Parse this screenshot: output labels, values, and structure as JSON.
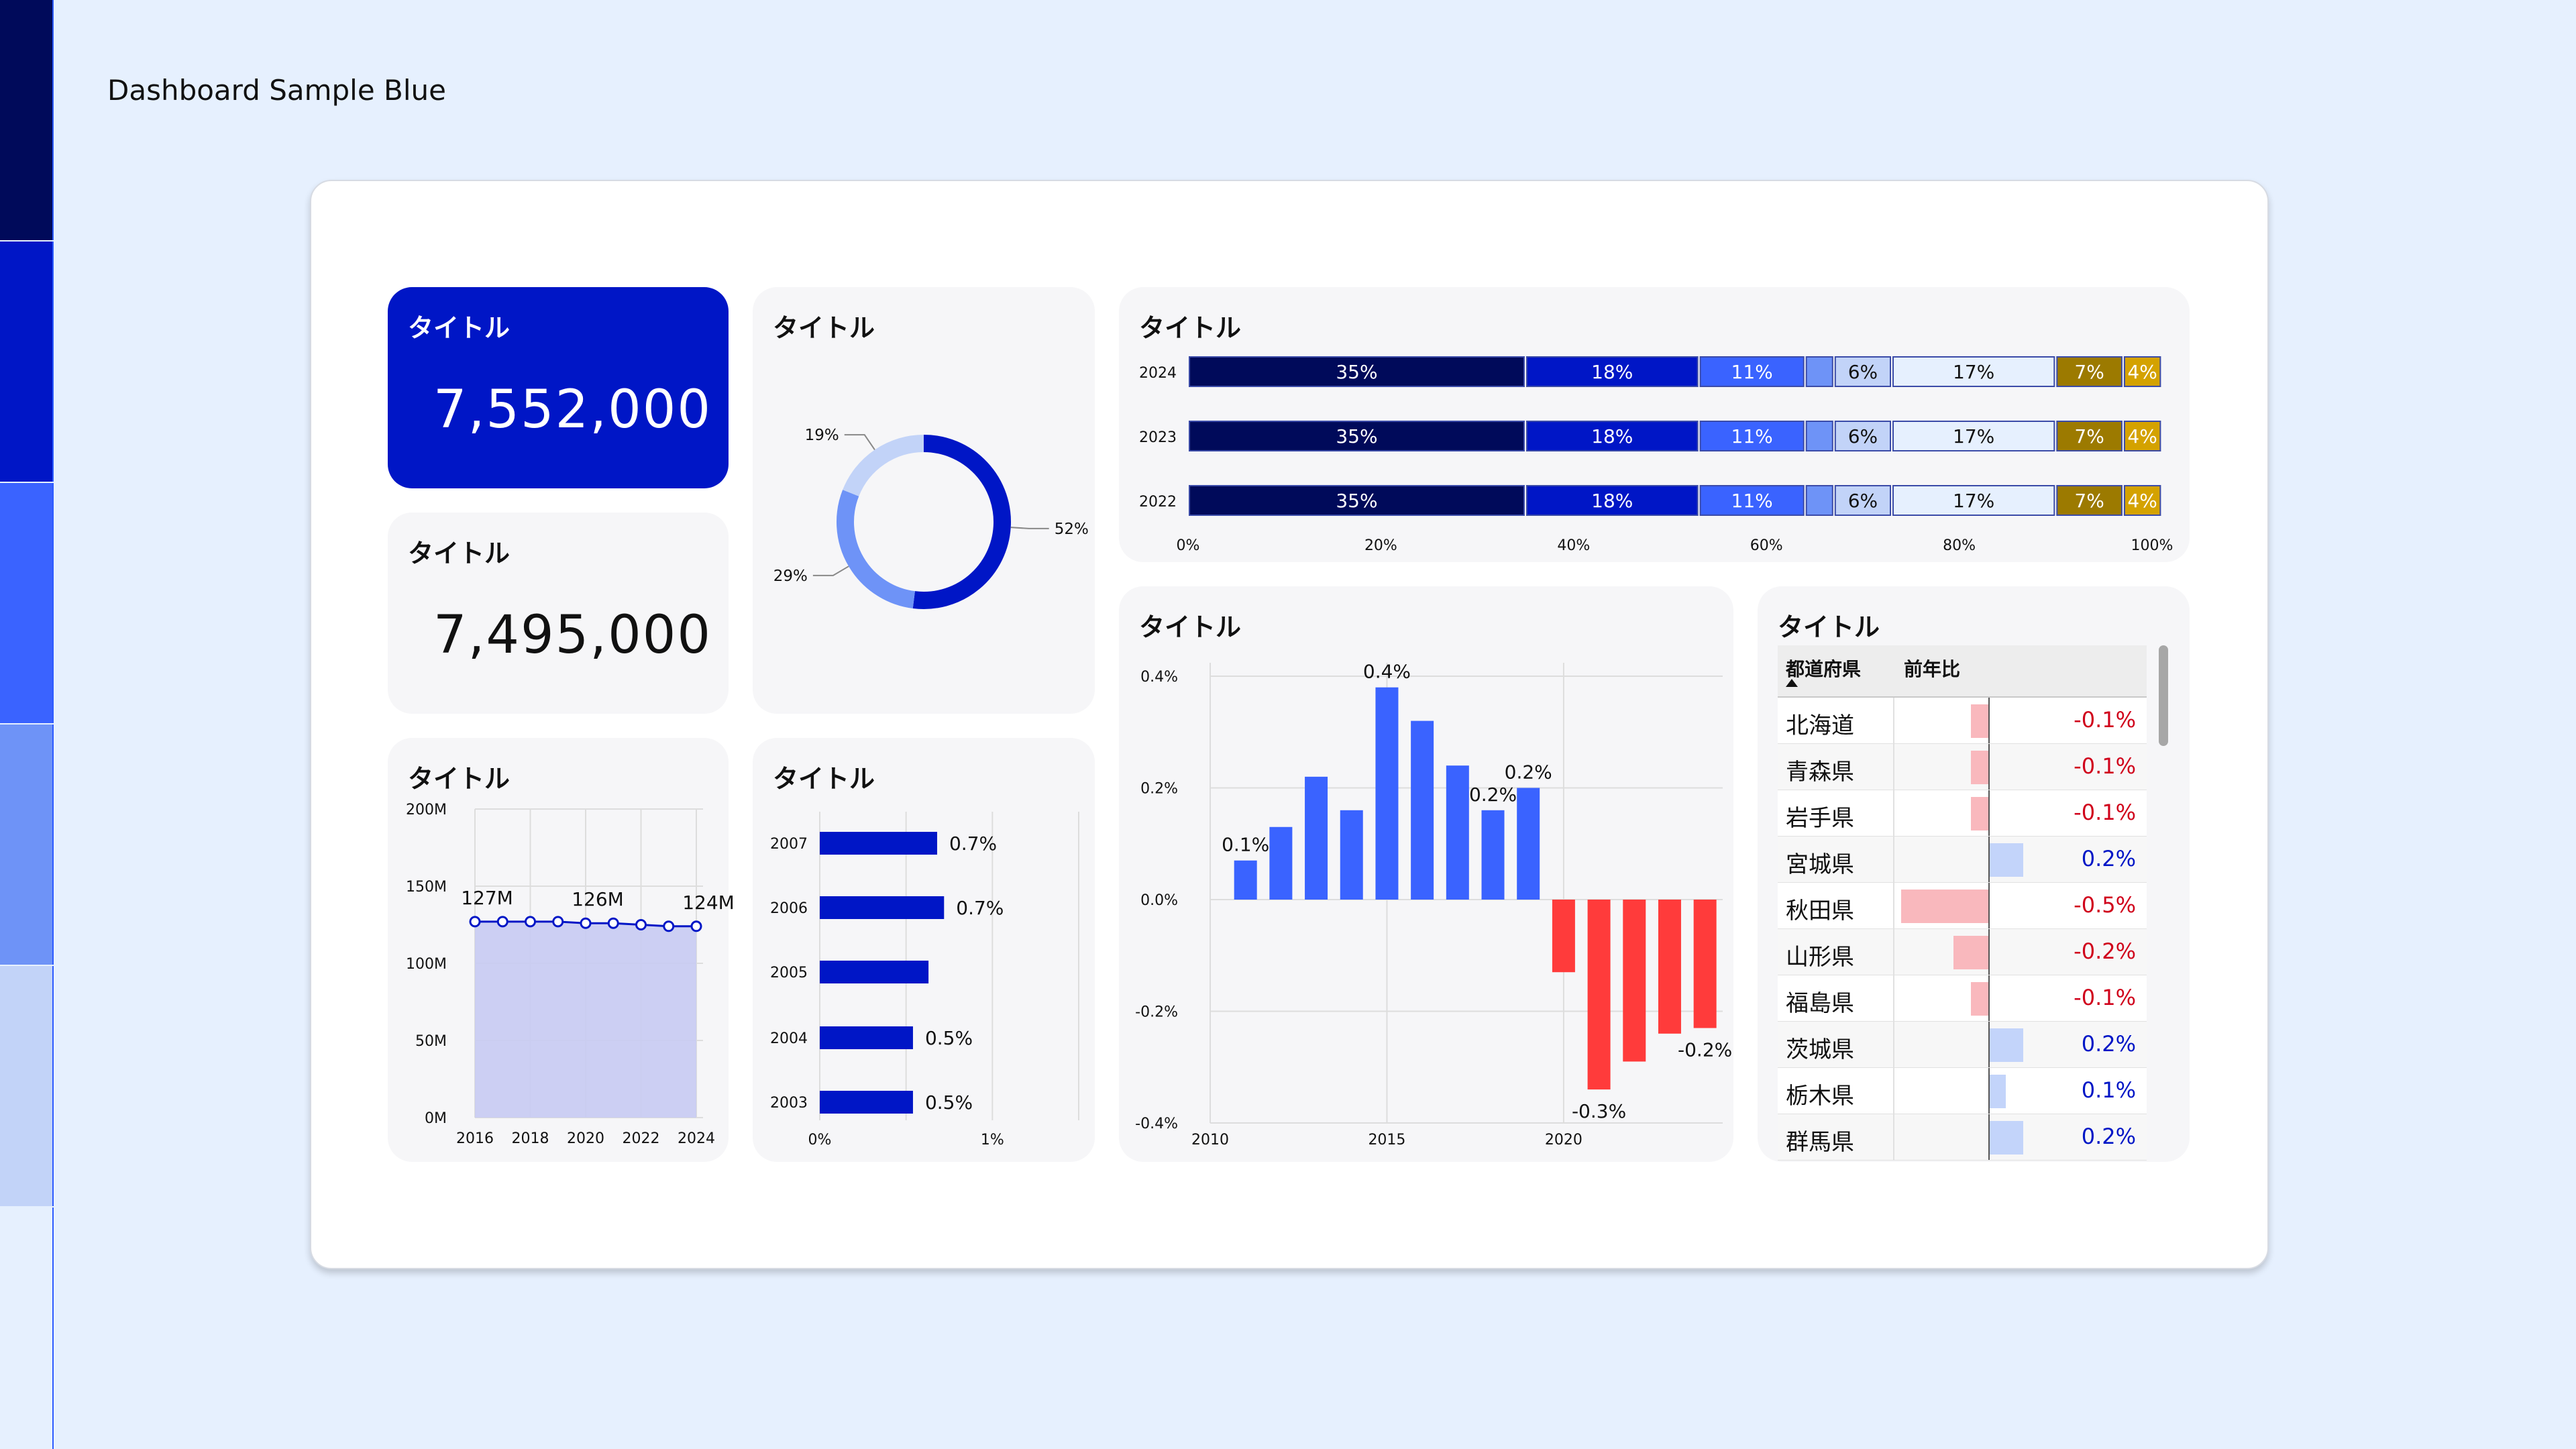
{
  "page": {
    "title": "Dashboard Sample Blue"
  },
  "palette": [
    "#000A5A",
    "#0016C6",
    "#3A63FF",
    "#6E93F7",
    "#C2D3F8",
    "#E6F0FE"
  ],
  "kpi1": {
    "title": "タイトル",
    "value": "7,552,000"
  },
  "kpi2": {
    "title": "タイトル",
    "value": "7,495,000"
  },
  "donut": {
    "title": "タイトル"
  },
  "stacked": {
    "title": "タイトル"
  },
  "line": {
    "title": "タイトル"
  },
  "hbar": {
    "title": "タイトル"
  },
  "column": {
    "title": "タイトル"
  },
  "table": {
    "title": "タイトル",
    "col_pref": "都道府県",
    "col_yoy": "前年比",
    "rows": [
      {
        "name": "北海道",
        "value": -0.1,
        "label": "-0.1%"
      },
      {
        "name": "青森県",
        "value": -0.1,
        "label": "-0.1%"
      },
      {
        "name": "岩手県",
        "value": -0.1,
        "label": "-0.1%"
      },
      {
        "name": "宮城県",
        "value": 0.2,
        "label": "0.2%"
      },
      {
        "name": "秋田県",
        "value": -0.5,
        "label": "-0.5%"
      },
      {
        "name": "山形県",
        "value": -0.2,
        "label": "-0.2%"
      },
      {
        "name": "福島県",
        "value": -0.1,
        "label": "-0.1%"
      },
      {
        "name": "茨城県",
        "value": 0.2,
        "label": "0.2%"
      },
      {
        "name": "栃木県",
        "value": 0.1,
        "label": "0.1%"
      },
      {
        "name": "群馬県",
        "value": 0.2,
        "label": "0.2%"
      }
    ]
  },
  "chart_data": [
    {
      "type": "pie",
      "subtype": "donut",
      "slices": [
        {
          "label": "52%",
          "value": 52,
          "color": "#0016C6"
        },
        {
          "label": "29%",
          "value": 29,
          "color": "#6E93F7"
        },
        {
          "label": "19%",
          "value": 19,
          "color": "#C2D3F8"
        }
      ]
    },
    {
      "type": "bar",
      "orientation": "horizontal",
      "stacked": "100%",
      "categories": [
        "2024",
        "2023",
        "2022"
      ],
      "xlim": [
        0,
        100
      ],
      "x_ticks": [
        "0%",
        "20%",
        "40%",
        "60%",
        "80%",
        "100%"
      ],
      "series": [
        {
          "values": [
            35,
            35,
            35
          ],
          "labels": [
            "35%",
            "35%",
            "35%"
          ],
          "color": "#000A5A",
          "text_color": "#FFFFFF"
        },
        {
          "values": [
            18,
            18,
            18
          ],
          "labels": [
            "18%",
            "18%",
            "18%"
          ],
          "color": "#0016C6",
          "text_color": "#FFFFFF"
        },
        {
          "values": [
            11,
            11,
            11
          ],
          "labels": [
            "11%",
            "11%",
            "11%"
          ],
          "color": "#3A63FF",
          "text_color": "#FFFFFF"
        },
        {
          "values": [
            3,
            3,
            3
          ],
          "labels": [
            "",
            "",
            ""
          ],
          "color": "#6E93F7",
          "text_color": "#111111"
        },
        {
          "values": [
            6,
            6,
            6
          ],
          "labels": [
            "6%",
            "6%",
            "6%"
          ],
          "color": "#C2D3F8",
          "text_color": "#111111"
        },
        {
          "values": [
            17,
            17,
            17
          ],
          "labels": [
            "17%",
            "17%",
            "17%"
          ],
          "color": "#E6F0FE",
          "text_color": "#111111"
        },
        {
          "values": [
            7,
            7,
            7
          ],
          "labels": [
            "7%",
            "7%",
            "7%"
          ],
          "color": "#9C7A00",
          "text_color": "#FFFFFF"
        },
        {
          "values": [
            4,
            4,
            4
          ],
          "labels": [
            "4%",
            "4%",
            "4%"
          ],
          "color": "#D4A200",
          "text_color": "#FFFFFF"
        }
      ]
    },
    {
      "type": "area",
      "x": [
        2016,
        2017,
        2018,
        2019,
        2020,
        2021,
        2022,
        2023,
        2024
      ],
      "values": [
        127,
        127,
        127,
        127,
        126,
        126,
        125,
        124,
        124
      ],
      "unit": "M",
      "ylim": [
        0,
        200
      ],
      "y_ticks": [
        "0M",
        "50M",
        "100M",
        "150M",
        "200M"
      ],
      "x_ticks": [
        "2016",
        "2018",
        "2020",
        "2022",
        "2024"
      ],
      "point_labels": [
        {
          "x": 2016,
          "text": "127M"
        },
        {
          "x": 2020,
          "text": "126M"
        },
        {
          "x": 2024,
          "text": "124M"
        }
      ]
    },
    {
      "type": "bar",
      "orientation": "horizontal",
      "categories": [
        "2007",
        "2006",
        "2005",
        "2004",
        "2003"
      ],
      "values": [
        0.68,
        0.72,
        0.63,
        0.54,
        0.54
      ],
      "labels": [
        "0.7%",
        "0.7%",
        "",
        "0.5%",
        "0.5%"
      ],
      "xlim": [
        0,
        1.5
      ],
      "x_ticks": [
        "0%",
        "1%"
      ]
    },
    {
      "type": "bar",
      "x": [
        2011,
        2012,
        2013,
        2014,
        2015,
        2016,
        2017,
        2018,
        2019,
        2020,
        2021,
        2022,
        2023,
        2024
      ],
      "values": [
        0.07,
        0.13,
        0.22,
        0.16,
        0.38,
        0.32,
        0.24,
        0.16,
        0.2,
        -0.13,
        -0.34,
        -0.29,
        -0.24,
        -0.23
      ],
      "labels": [
        "0.1%",
        "",
        "",
        "",
        "0.4%",
        "",
        "",
        "0.2%",
        "0.2%",
        "",
        "-0.3%",
        "",
        "",
        "-0.2%"
      ],
      "ylim": [
        -0.4,
        0.4
      ],
      "y_ticks": [
        "-0.4%",
        "-0.2%",
        "0.0%",
        "0.2%",
        "0.4%"
      ],
      "x_ticks": [
        "2010",
        "2015",
        "2020"
      ],
      "positive_color": "#3A63FF",
      "negative_color": "#FF3B3B"
    }
  ]
}
